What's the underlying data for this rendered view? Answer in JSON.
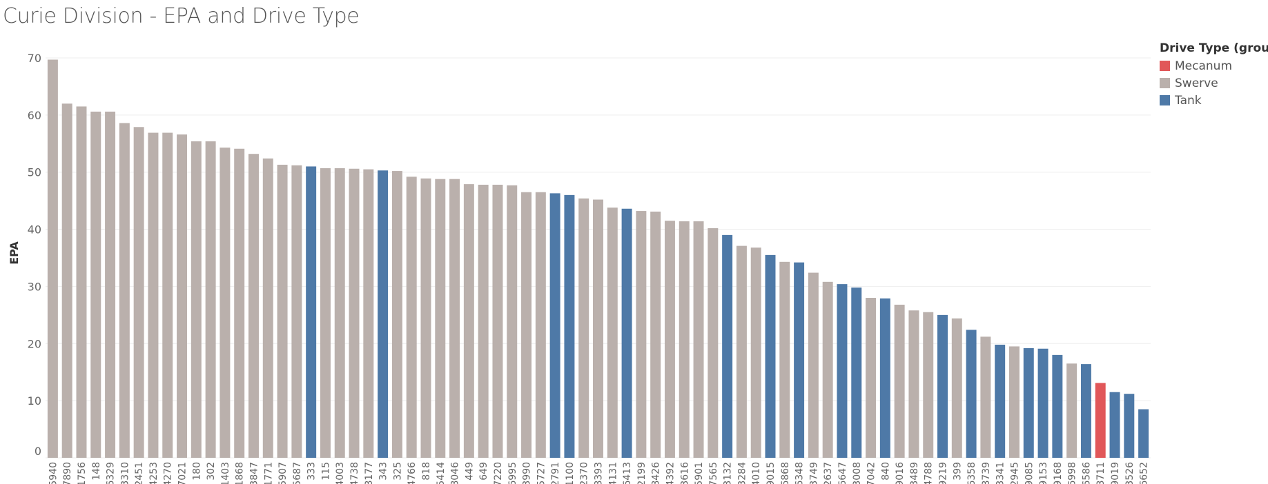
{
  "chart_data": {
    "type": "bar",
    "title": "Curie Division - EPA and Drive Type",
    "xlabel": "",
    "ylabel": "EPA",
    "ylim": [
      0,
      70
    ],
    "yticks": [
      0,
      10,
      20,
      30,
      40,
      50,
      60,
      70
    ],
    "grid": true,
    "legend": {
      "title": "Drive Type (group)",
      "placement": "top-right",
      "entries": [
        {
          "name": "Mecanum",
          "color": "#E15759"
        },
        {
          "name": "Swerve",
          "color": "#BAB0AC"
        },
        {
          "name": "Tank",
          "color": "#4E79A7"
        }
      ]
    },
    "colors": {
      "Mecanum": "#E15759",
      "Swerve": "#BAB0AC",
      "Tank": "#4E79A7"
    },
    "categories": [
      "5940",
      "7890",
      "1756",
      "148",
      "6329",
      "3310",
      "2451",
      "4253",
      "4270",
      "7021",
      "180",
      "302",
      "1403",
      "1868",
      "3847",
      "1771",
      "5907",
      "5687",
      "333",
      "115",
      "4003",
      "4738",
      "8177",
      "343",
      "325",
      "4766",
      "818",
      "5414",
      "8046",
      "449",
      "649",
      "7220",
      "6995",
      "3990",
      "5727",
      "2791",
      "1100",
      "2370",
      "8393",
      "4131",
      "6413",
      "2199",
      "8426",
      "4392",
      "3616",
      "5901",
      "7565",
      "3132",
      "3284",
      "4010",
      "9015",
      "6868",
      "6348",
      "3749",
      "2637",
      "6647",
      "3008",
      "7042",
      "840",
      "9016",
      "3489",
      "4788",
      "9219",
      "399",
      "6358",
      "8739",
      "3341",
      "2945",
      "9085",
      "9153",
      "9168",
      "6998",
      "6586",
      "8711",
      "9019",
      "3526",
      "6652"
    ],
    "values": [
      69.7,
      62.0,
      61.5,
      60.6,
      60.6,
      58.6,
      57.9,
      56.9,
      56.9,
      56.6,
      55.4,
      55.4,
      54.3,
      54.1,
      53.2,
      52.4,
      51.3,
      51.2,
      51.0,
      50.7,
      50.7,
      50.6,
      50.5,
      50.3,
      50.2,
      49.2,
      48.9,
      48.8,
      48.8,
      47.9,
      47.8,
      47.8,
      47.7,
      46.5,
      46.5,
      46.3,
      46.0,
      45.4,
      45.2,
      43.8,
      43.6,
      43.2,
      43.1,
      41.5,
      41.4,
      41.4,
      40.2,
      39.0,
      37.1,
      36.8,
      35.5,
      34.3,
      34.2,
      32.4,
      30.8,
      30.4,
      29.8,
      28.0,
      27.9,
      26.8,
      25.8,
      25.5,
      25.0,
      24.4,
      22.4,
      21.2,
      19.8,
      19.5,
      19.2,
      19.1,
      18.0,
      16.5,
      16.4,
      13.1,
      11.5,
      11.2,
      8.5
    ],
    "groups": [
      "Swerve",
      "Swerve",
      "Swerve",
      "Swerve",
      "Swerve",
      "Swerve",
      "Swerve",
      "Swerve",
      "Swerve",
      "Swerve",
      "Swerve",
      "Swerve",
      "Swerve",
      "Swerve",
      "Swerve",
      "Swerve",
      "Swerve",
      "Swerve",
      "Tank",
      "Swerve",
      "Swerve",
      "Swerve",
      "Swerve",
      "Tank",
      "Swerve",
      "Swerve",
      "Swerve",
      "Swerve",
      "Swerve",
      "Swerve",
      "Swerve",
      "Swerve",
      "Swerve",
      "Swerve",
      "Swerve",
      "Tank",
      "Tank",
      "Swerve",
      "Swerve",
      "Swerve",
      "Tank",
      "Swerve",
      "Swerve",
      "Swerve",
      "Swerve",
      "Swerve",
      "Swerve",
      "Tank",
      "Swerve",
      "Swerve",
      "Tank",
      "Swerve",
      "Tank",
      "Swerve",
      "Swerve",
      "Tank",
      "Tank",
      "Swerve",
      "Tank",
      "Swerve",
      "Swerve",
      "Swerve",
      "Tank",
      "Swerve",
      "Tank",
      "Swerve",
      "Tank",
      "Swerve",
      "Tank",
      "Tank",
      "Tank",
      "Swerve",
      "Tank",
      "Mecanum",
      "Tank",
      "Tank",
      "Tank"
    ]
  }
}
